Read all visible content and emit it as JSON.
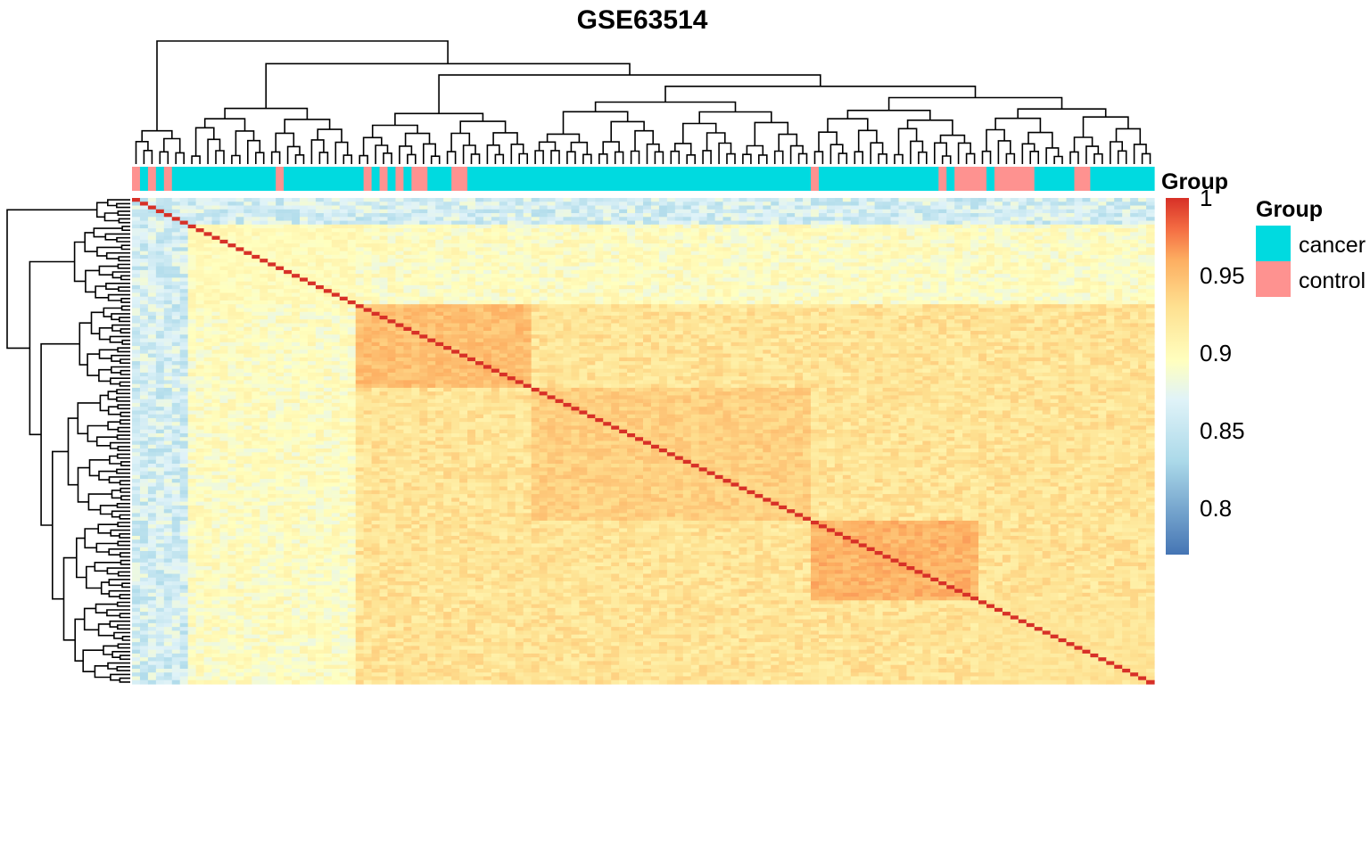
{
  "chart_data": {
    "type": "heatmap",
    "title": "GSE63514",
    "matrix_kind": "sample-sample correlation",
    "n_samples": 128,
    "samples_prefix": "GSM",
    "column_labels": [],
    "annotation": {
      "name": "Group",
      "levels": [
        {
          "label": "cancer",
          "color": "#00dae0"
        },
        {
          "label": "control",
          "color": "#fe9290"
        }
      ],
      "column_groups": [
        "control",
        "cancer",
        "control",
        "cancer",
        "control",
        "cancer",
        "cancer",
        "cancer",
        "cancer",
        "cancer",
        "cancer",
        "cancer",
        "cancer",
        "cancer",
        "cancer",
        "cancer",
        "cancer",
        "cancer",
        "control",
        "cancer",
        "cancer",
        "cancer",
        "cancer",
        "cancer",
        "cancer",
        "cancer",
        "cancer",
        "cancer",
        "cancer",
        "control",
        "cancer",
        "control",
        "cancer",
        "control",
        "cancer",
        "control",
        "control",
        "cancer",
        "cancer",
        "cancer",
        "control",
        "control",
        "cancer",
        "cancer",
        "cancer",
        "cancer",
        "cancer",
        "cancer",
        "cancer",
        "cancer",
        "cancer",
        "cancer",
        "cancer",
        "cancer",
        "cancer",
        "cancer",
        "cancer",
        "cancer",
        "cancer",
        "cancer",
        "cancer",
        "cancer",
        "cancer",
        "cancer",
        "cancer",
        "cancer",
        "cancer",
        "cancer",
        "cancer",
        "cancer",
        "cancer",
        "cancer",
        "cancer",
        "cancer",
        "cancer",
        "cancer",
        "cancer",
        "cancer",
        "cancer",
        "cancer",
        "cancer",
        "cancer",
        "cancer",
        "cancer",
        "cancer",
        "control",
        "cancer",
        "cancer",
        "cancer",
        "cancer",
        "cancer",
        "cancer",
        "cancer",
        "cancer",
        "cancer",
        "cancer",
        "cancer",
        "cancer",
        "cancer",
        "cancer",
        "cancer",
        "control",
        "cancer",
        "control",
        "control",
        "control",
        "control",
        "cancer",
        "control",
        "control",
        "control",
        "control",
        "control",
        "cancer",
        "cancer",
        "cancer",
        "cancer",
        "cancer",
        "control",
        "control",
        "cancer",
        "cancer",
        "cancer",
        "cancer",
        "cancer",
        "cancer",
        "cancer",
        "cancer"
      ]
    },
    "color_scale": {
      "title": "Group",
      "min": 0.77,
      "max": 1.0,
      "ticks": [
        {
          "value": 1.0,
          "label": "1"
        },
        {
          "value": 0.95,
          "label": "0.95"
        },
        {
          "value": 0.9,
          "label": "0.9"
        },
        {
          "value": 0.85,
          "label": "0.85"
        },
        {
          "value": 0.8,
          "label": "0.8"
        }
      ],
      "stops": [
        {
          "value": 0.77,
          "color": "#4575b4"
        },
        {
          "value": 0.83,
          "color": "#abd9e9"
        },
        {
          "value": 0.87,
          "color": "#e0f3f8"
        },
        {
          "value": 0.895,
          "color": "#ffffbf"
        },
        {
          "value": 0.93,
          "color": "#fee090"
        },
        {
          "value": 0.96,
          "color": "#fdae61"
        },
        {
          "value": 0.98,
          "color": "#f46d43"
        },
        {
          "value": 1.0,
          "color": "#d73027"
        }
      ]
    },
    "blocks": [
      {
        "from": 0,
        "to": 7,
        "mean_corr": 0.84
      },
      {
        "from": 7,
        "to": 28,
        "mean_corr": 0.9
      },
      {
        "from": 28,
        "to": 50,
        "mean_corr": 0.95
      },
      {
        "from": 50,
        "to": 85,
        "mean_corr": 0.94
      },
      {
        "from": 85,
        "to": 106,
        "mean_corr": 0.955
      },
      {
        "from": 106,
        "to": 128,
        "mean_corr": 0.925
      }
    ],
    "diagonal": 1.0
  },
  "legend": {
    "group_title": "Group",
    "scale_title": "Group"
  }
}
